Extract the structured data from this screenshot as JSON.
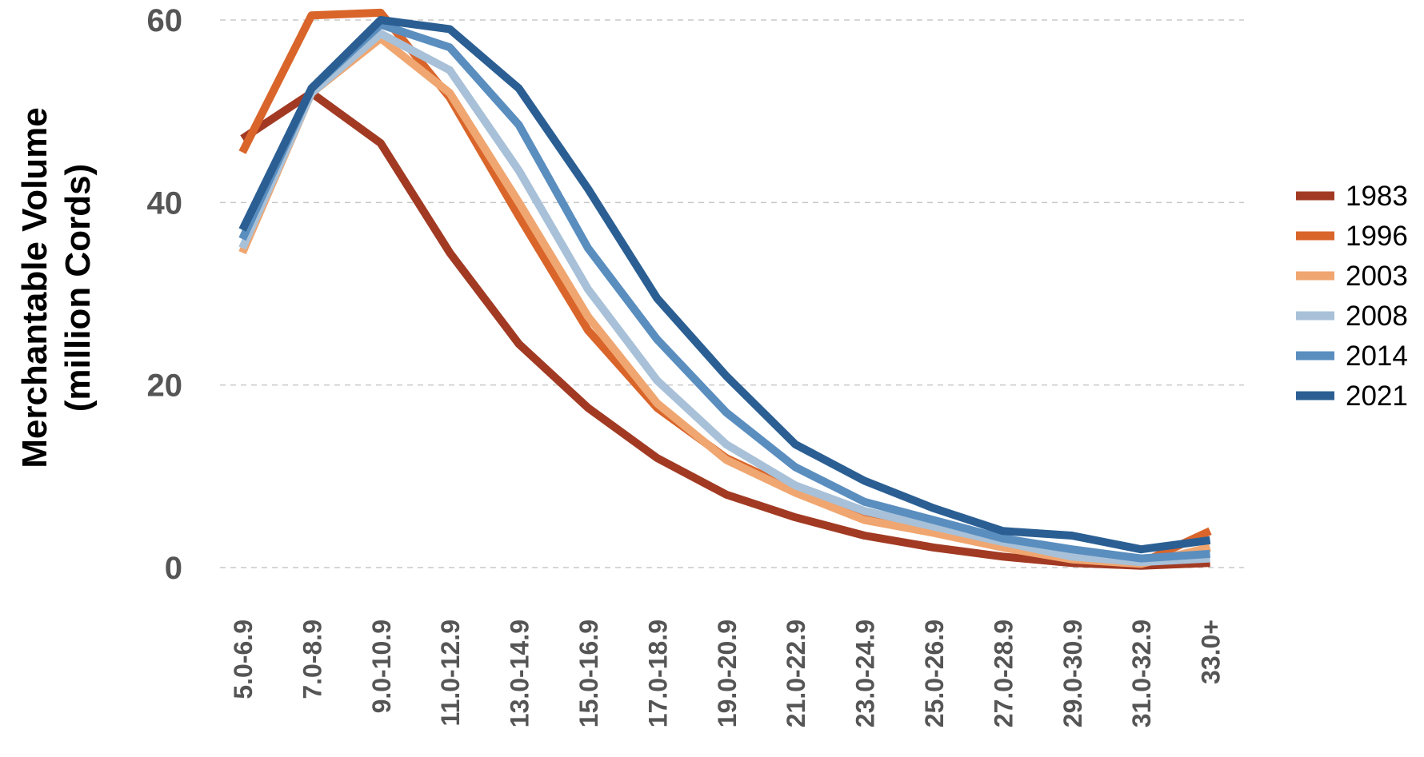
{
  "chart_data": {
    "type": "line",
    "title": "",
    "xlabel": "",
    "ylabel": [
      "Merchantable  Volume",
      "(million Cords)"
    ],
    "ylim": [
      0,
      60
    ],
    "yticks": [
      0,
      20,
      40,
      60
    ],
    "grid": "horizontal dashed",
    "legend": "right",
    "categories": [
      "5.0-6.9",
      "7.0-8.9",
      "9.0-10.9",
      "11.0-12.9",
      "13.0-14.9",
      "15.0-16.9",
      "17.0-18.9",
      "19.0-20.9",
      "21.0-22.9",
      "23.0-24.9",
      "25.0-26.9",
      "27.0-28.9",
      "29.0-30.9",
      "31.0-32.9",
      "33.0+"
    ],
    "series": [
      {
        "name": "1983",
        "color": "#a23a23",
        "values": [
          47,
          52,
          46.5,
          34.5,
          24.5,
          17.5,
          12,
          8,
          5.5,
          3.5,
          2.2,
          1.2,
          0.5,
          0.2,
          0.5
        ]
      },
      {
        "name": "1996",
        "color": "#d9652b",
        "values": [
          45.5,
          60.5,
          60.8,
          51.5,
          38.5,
          26,
          17.5,
          12,
          8.5,
          5.5,
          4,
          2.5,
          1,
          0.5,
          4
        ]
      },
      {
        "name": "2003",
        "color": "#f0a670",
        "values": [
          34.5,
          52,
          58,
          52,
          40,
          27.5,
          18,
          11.8,
          8.2,
          5.2,
          3.8,
          2.2,
          0.9,
          0.4,
          2.2
        ]
      },
      {
        "name": "2008",
        "color": "#a8c1d8",
        "values": [
          35,
          52,
          58.5,
          54.5,
          43.5,
          30.5,
          20.5,
          13.5,
          9,
          6.2,
          4.5,
          2.8,
          1.2,
          0.6,
          1
        ]
      },
      {
        "name": "2014",
        "color": "#5a8ebf",
        "values": [
          36,
          52.5,
          59.5,
          57,
          48.5,
          35,
          25,
          17,
          11,
          7.2,
          5.2,
          3.2,
          2,
          1,
          1.5
        ]
      },
      {
        "name": "2021",
        "color": "#2b5f93",
        "values": [
          37,
          52.5,
          60,
          59,
          52.5,
          41.5,
          29.5,
          21,
          13.5,
          9.5,
          6.5,
          4,
          3.5,
          2,
          3
        ]
      }
    ]
  }
}
